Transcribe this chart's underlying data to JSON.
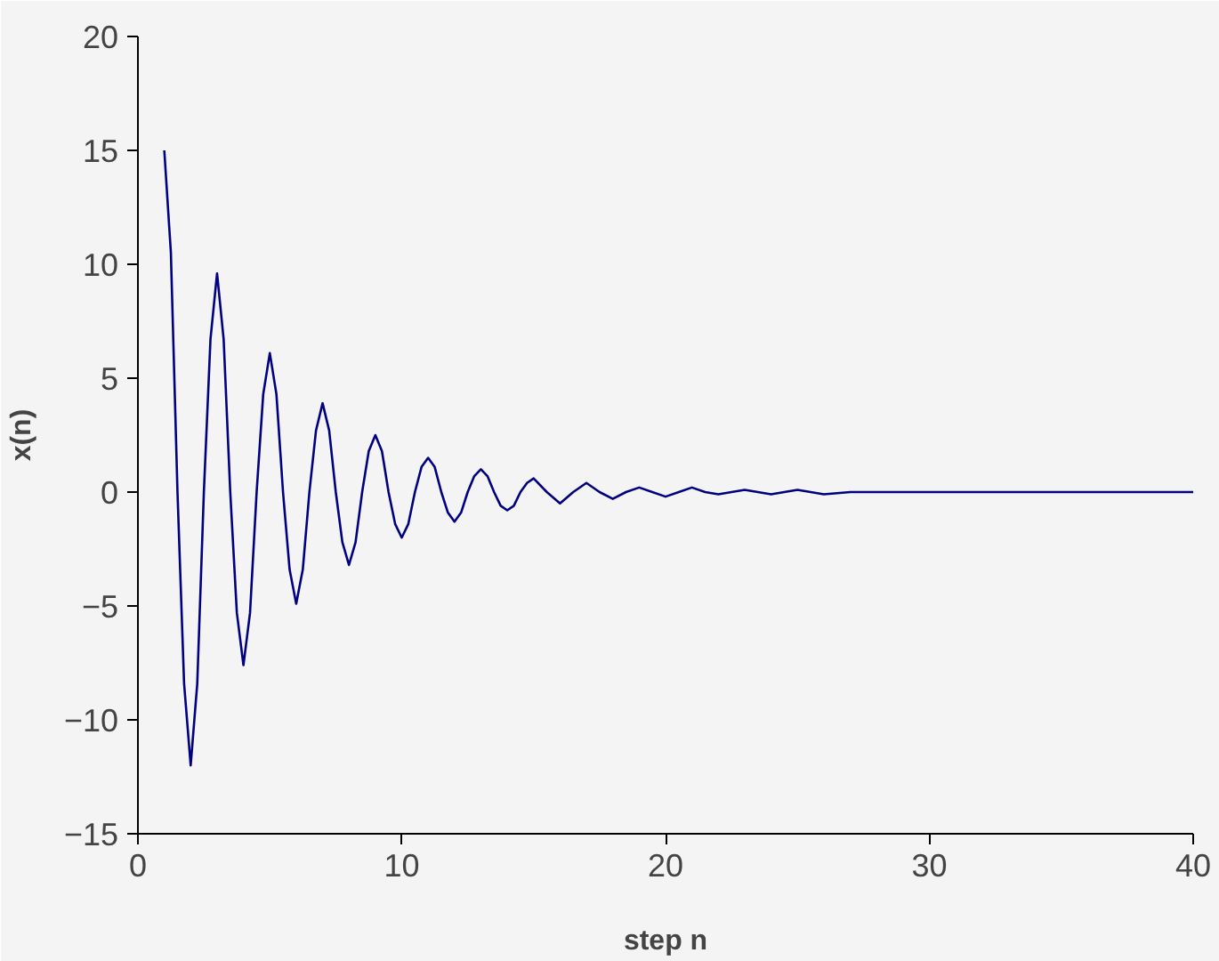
{
  "chart_data": {
    "type": "line",
    "xlabel": "step n",
    "ylabel": "x(n)",
    "xlim": [
      0,
      40
    ],
    "ylim": [
      -15,
      20
    ],
    "xticks": [
      0,
      10,
      20,
      30,
      40
    ],
    "yticks": [
      -15,
      -10,
      -5,
      0,
      5,
      10,
      15,
      20
    ],
    "marker": "none",
    "line_style": "solid",
    "series": [
      {
        "color": "#000080",
        "x": [
          1,
          1.25,
          1.5,
          1.75,
          2,
          2.25,
          2.5,
          2.75,
          3,
          3.25,
          3.5,
          3.75,
          4,
          4.25,
          4.5,
          4.75,
          5,
          5.25,
          5.5,
          5.75,
          6,
          6.25,
          6.5,
          6.75,
          7,
          7.25,
          7.5,
          7.75,
          8,
          8.25,
          8.5,
          8.75,
          9,
          9.25,
          9.5,
          9.75,
          10,
          10.25,
          10.5,
          10.75,
          11,
          11.25,
          11.5,
          11.75,
          12,
          12.25,
          12.5,
          12.75,
          13,
          13.25,
          13.5,
          13.75,
          14,
          14.25,
          14.5,
          14.75,
          15,
          15.5,
          16,
          16.5,
          17,
          17.5,
          18,
          18.5,
          19,
          19.5,
          20,
          20.5,
          21,
          21.5,
          22,
          22.5,
          23,
          24,
          25,
          26,
          27,
          40
        ],
        "values": [
          15,
          10.5,
          0,
          -8.4,
          -12,
          -8.4,
          0,
          6.7,
          9.6,
          6.7,
          0,
          -5.3,
          -7.6,
          -5.3,
          0,
          4.3,
          6.1,
          4.3,
          0,
          -3.4,
          -4.9,
          -3.4,
          0,
          2.7,
          3.9,
          2.7,
          0,
          -2.2,
          -3.2,
          -2.2,
          0,
          1.8,
          2.5,
          1.8,
          0,
          -1.4,
          -2.0,
          -1.4,
          0,
          1.1,
          1.5,
          1.1,
          0,
          -0.9,
          -1.3,
          -0.9,
          0,
          0.7,
          1.0,
          0.7,
          0,
          -0.6,
          -0.8,
          -0.6,
          0,
          0.4,
          0.6,
          0,
          -0.5,
          0,
          0.4,
          0,
          -0.3,
          0,
          0.2,
          0,
          -0.2,
          0,
          0.2,
          0,
          -0.1,
          0,
          0.1,
          -0.1,
          0.1,
          -0.1,
          0,
          0
        ]
      }
    ]
  }
}
